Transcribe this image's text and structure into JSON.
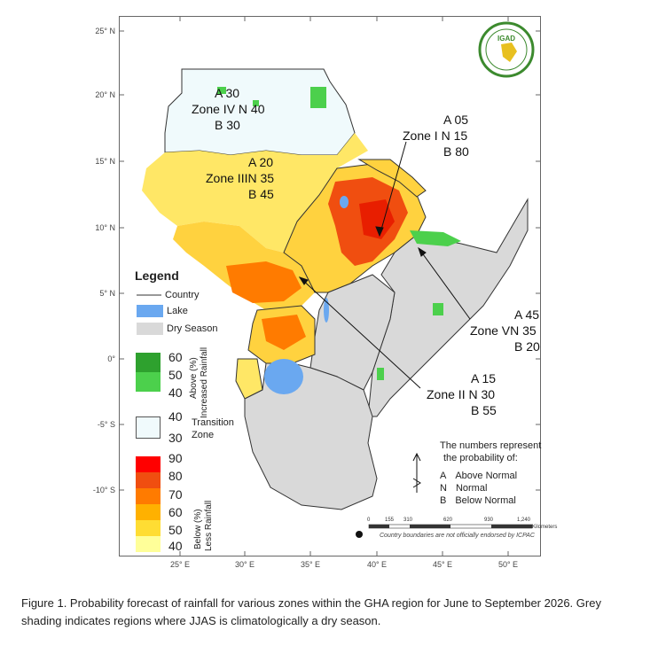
{
  "map": {
    "lat_labels": [
      "25° N",
      "20° N",
      "15° N",
      "10° N",
      "5° N",
      "0°",
      "-5° S",
      "-10° S"
    ],
    "lon_labels": [
      "25° E",
      "30° E",
      "35° E",
      "40° E",
      "45° E",
      "50° E"
    ],
    "logo_text": "IGAD",
    "zones": [
      {
        "name": "Zone IV",
        "a": "A 30",
        "n": "N 40",
        "b": "B 30"
      },
      {
        "name": "Zone III",
        "a": "A 20",
        "n": "N 35",
        "b": "B 45"
      },
      {
        "name": "Zone I",
        "a": "A 05",
        "n": "N 15",
        "b": "B 80"
      },
      {
        "name": "Zone V",
        "a": "A 45",
        "n": "N 35",
        "b": "B 20"
      },
      {
        "name": "Zone II",
        "a": "A 15",
        "n": "N 30",
        "b": "B 55"
      }
    ]
  },
  "legend": {
    "title": "Legend",
    "country": "Country",
    "lake": "Lake",
    "dry_season": "Dry Season",
    "above_values": [
      "60",
      "50",
      "40"
    ],
    "above_label_1": "Above (%)",
    "above_label_2": "Increased Rainfall",
    "transition_values": [
      "40",
      "30"
    ],
    "transition_label_1": "Transition",
    "transition_label_2": "Zone",
    "below_values": [
      "90",
      "80",
      "70",
      "60",
      "50",
      "40"
    ],
    "below_label_1": "Below (%)",
    "below_label_2": "Less Rainfall",
    "colors": {
      "above": [
        "#2ea12e",
        "#4cd04c"
      ],
      "transition": "#f0fafc",
      "below": [
        "#ff0000",
        "#f04e10",
        "#ff7b00",
        "#ffb100",
        "#ffdd33",
        "#ffff99"
      ],
      "lake": "#6aa8f0",
      "dry": "#d9d9d9"
    }
  },
  "probability_note": {
    "line1": "The numbers represent",
    "line2": "the probability of:",
    "items": [
      {
        "letter": "A",
        "text": "Above Normal"
      },
      {
        "letter": "N",
        "text": "Normal"
      },
      {
        "letter": "B",
        "text": "Below Normal"
      }
    ]
  },
  "scale_bar": {
    "ticks": [
      "0",
      "155",
      "310",
      "620",
      "930",
      "1,240"
    ],
    "unit": "Kilometers"
  },
  "disclaimer": "Country boundaries are not officially endorsed by ICPAC",
  "caption": "Figure 1. Probability forecast of rainfall for various zones within the GHA region for June to September 2026.  Grey shading indicates regions where JJAS is climatologically a dry season."
}
